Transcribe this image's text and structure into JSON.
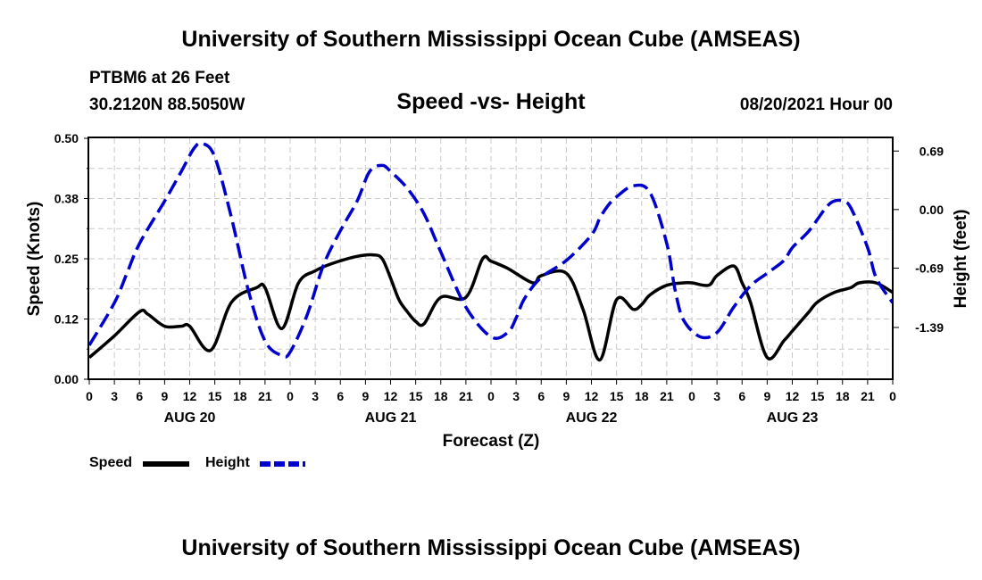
{
  "header": {
    "title": "University of Southern Mississippi Ocean Cube (AMSEAS)",
    "station": "PTBM6 at 26 Feet",
    "location": "30.2120N  88.5050W",
    "chart_title": "Speed -vs- Height",
    "datetime": "08/20/2021 Hour 00"
  },
  "footer": {
    "title": "University of Southern Mississippi Ocean Cube (AMSEAS)"
  },
  "legend": {
    "speed_label": "Speed",
    "height_label": "Height"
  },
  "colors": {
    "speed": "#000000",
    "height": "#0000cc",
    "grid": "#c8c8c8"
  },
  "chart_data": {
    "type": "line",
    "title": "Speed -vs- Height",
    "xlabel": "Forecast (Z)",
    "ylabel_left": "Speed (Knots)",
    "ylabel_right": "Height (feet)",
    "x_range_hours": [
      0,
      96
    ],
    "y_left_range": [
      0,
      0.5
    ],
    "y_right_range": [
      -2.0,
      0.84
    ],
    "y_left_ticks": [
      "0.00",
      "0.12",
      "0.25",
      "0.38",
      "0.50"
    ],
    "y_left_tick_values": [
      0,
      0.125,
      0.25,
      0.375,
      0.5
    ],
    "y_right_ticks": [
      "0.69",
      "0.00",
      "-0.69",
      "-1.39"
    ],
    "y_right_tick_values": [
      0.69,
      0.0,
      -0.69,
      -1.39
    ],
    "x_tick_labels": [
      "0",
      "3",
      "6",
      "9",
      "12",
      "15",
      "18",
      "21",
      "0",
      "3",
      "6",
      "9",
      "12",
      "15",
      "18",
      "21",
      "0",
      "3",
      "6",
      "9",
      "12",
      "15",
      "18",
      "21",
      "0",
      "3",
      "6",
      "9",
      "12",
      "15",
      "18",
      "21",
      "0"
    ],
    "day_labels": [
      {
        "label": "AUG 20",
        "hour": 12
      },
      {
        "label": "AUG 21",
        "hour": 36
      },
      {
        "label": "AUG 22",
        "hour": 60
      },
      {
        "label": "AUG 23",
        "hour": 84
      }
    ],
    "grid": true,
    "series": [
      {
        "name": "Speed",
        "axis": "left",
        "style": "solid",
        "x": [
          0,
          3,
          6,
          7,
          9,
          11,
          12,
          14.5,
          17,
          20,
          21,
          23,
          25,
          27,
          29,
          32,
          34,
          35,
          36,
          37,
          38,
          39,
          40,
          42,
          45,
          47,
          48,
          50,
          53,
          54,
          57,
          59,
          61,
          63,
          65,
          66,
          67,
          69,
          71,
          72,
          74,
          75,
          77,
          78,
          79,
          81,
          83,
          84,
          85,
          86,
          87,
          89,
          91,
          92,
          94,
          96
        ],
        "values": [
          0.045,
          0.09,
          0.14,
          0.135,
          0.11,
          0.11,
          0.11,
          0.06,
          0.16,
          0.19,
          0.19,
          0.105,
          0.2,
          0.225,
          0.24,
          0.255,
          0.258,
          0.25,
          0.21,
          0.165,
          0.14,
          0.12,
          0.115,
          0.17,
          0.17,
          0.25,
          0.245,
          0.23,
          0.2,
          0.215,
          0.22,
          0.145,
          0.04,
          0.165,
          0.145,
          0.155,
          0.175,
          0.195,
          0.2,
          0.2,
          0.195,
          0.215,
          0.235,
          0.2,
          0.16,
          0.045,
          0.08,
          0.1,
          0.12,
          0.14,
          0.16,
          0.18,
          0.19,
          0.2,
          0.2,
          0.18
        ]
      },
      {
        "name": "Height",
        "axis": "right",
        "style": "dashed",
        "x": [
          0,
          3,
          4.5,
          6,
          9,
          11,
          12.5,
          13.5,
          15,
          17,
          19,
          21,
          23,
          24,
          26,
          28,
          30,
          32,
          33.5,
          35,
          36,
          38,
          40,
          42,
          45,
          48,
          50,
          51,
          52,
          54,
          57,
          60,
          61,
          62,
          63,
          65,
          67,
          69,
          70,
          71,
          73,
          75,
          77,
          79,
          81,
          83,
          84,
          86,
          88,
          89,
          90,
          91,
          93,
          94,
          96
        ],
        "values": [
          -1.6,
          -1.1,
          -0.75,
          -0.4,
          0.1,
          0.45,
          0.72,
          0.78,
          0.62,
          -0.1,
          -0.95,
          -1.55,
          -1.72,
          -1.68,
          -1.25,
          -0.65,
          -0.25,
          0.1,
          0.45,
          0.52,
          0.45,
          0.25,
          -0.05,
          -0.5,
          -1.15,
          -1.5,
          -1.45,
          -1.28,
          -1.05,
          -0.8,
          -0.6,
          -0.3,
          -0.1,
          0.05,
          0.15,
          0.28,
          0.2,
          -0.4,
          -0.95,
          -1.3,
          -1.5,
          -1.45,
          -1.15,
          -0.9,
          -0.75,
          -0.6,
          -0.45,
          -0.25,
          0.02,
          0.1,
          0.1,
          0.02,
          -0.45,
          -0.8,
          -1.1
        ]
      }
    ]
  }
}
